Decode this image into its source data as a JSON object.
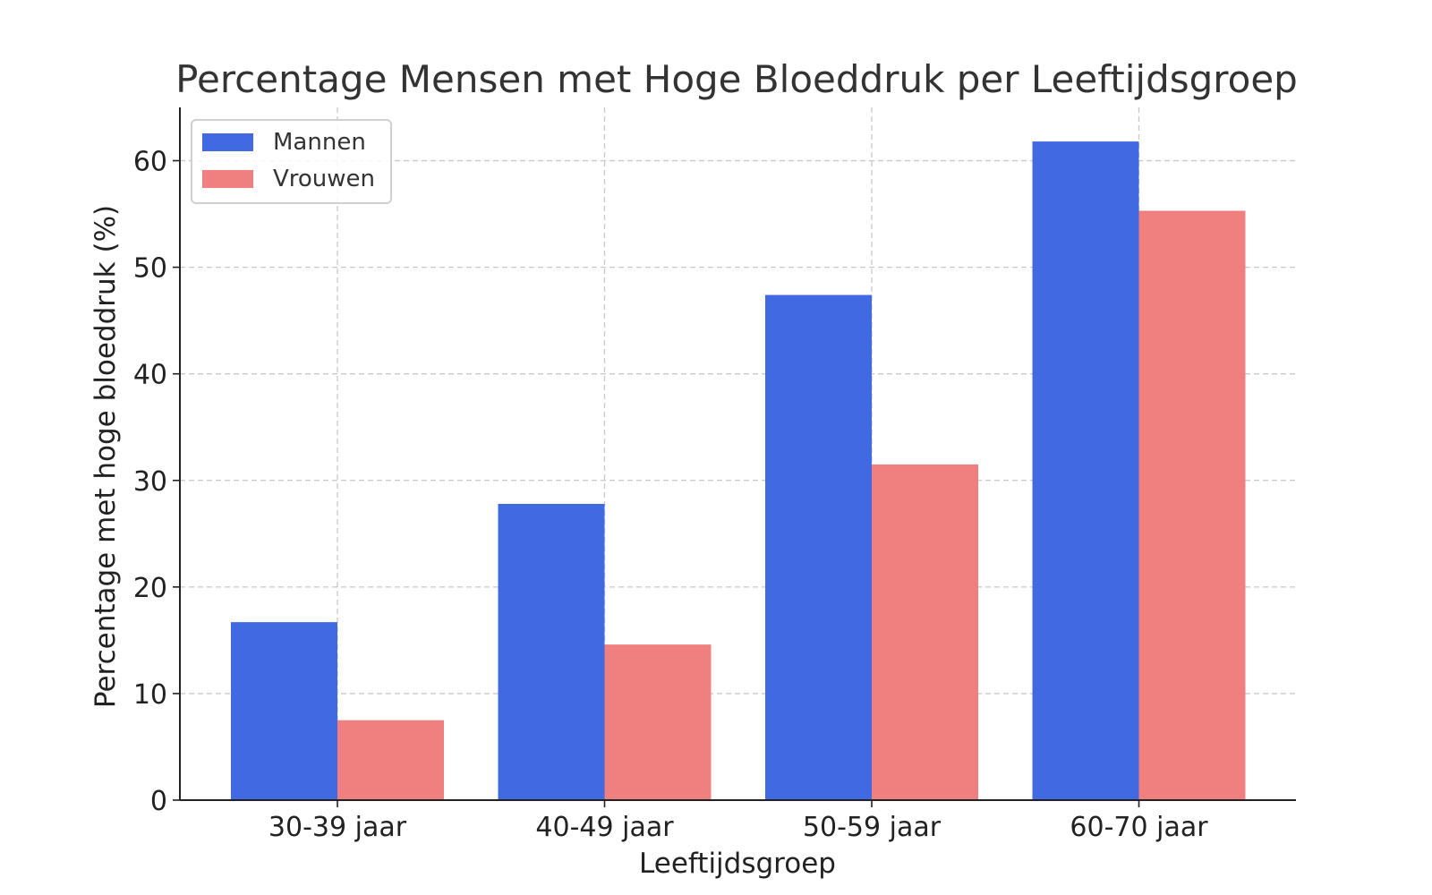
{
  "chart_data": {
    "type": "bar",
    "title": "Percentage Mensen met Hoge Bloeddruk per Leeftijdsgroep",
    "xlabel": "Leeftijdsgroep",
    "ylabel": "Percentage met hoge bloeddruk (%)",
    "categories": [
      "30-39 jaar",
      "40-49 jaar",
      "50-59 jaar",
      "60-70 jaar"
    ],
    "series": [
      {
        "name": "Mannen",
        "values": [
          16.7,
          27.8,
          47.4,
          61.8
        ],
        "color": "#4169E1"
      },
      {
        "name": "Vrouwen",
        "values": [
          7.5,
          14.6,
          31.5,
          55.3
        ],
        "color": "#F08080"
      }
    ],
    "ylim": [
      0,
      65
    ],
    "yticks": [
      0,
      10,
      20,
      30,
      40,
      50,
      60
    ],
    "grid": true,
    "legend_position": "top-left"
  }
}
